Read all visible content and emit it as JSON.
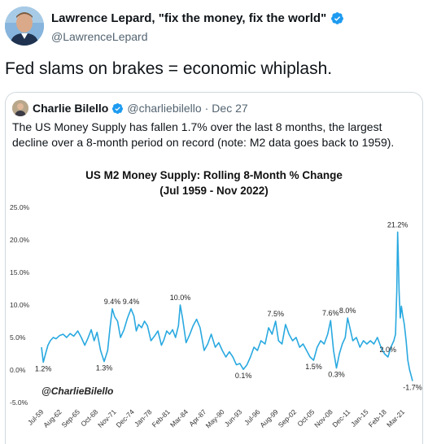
{
  "tweet": {
    "author_name": "Lawrence Lepard, \"fix the money, fix the world\"",
    "author_handle": "@LawrenceLepard",
    "text": "Fed slams on brakes = economic whiplash."
  },
  "quoted_tweet": {
    "author_name": "Charlie Bilello",
    "author_handle": "@charliebilello",
    "separator": "·",
    "date": "Dec 27",
    "text": "The US Money Supply has fallen 1.7% over the last 8 months, the largest decline over a 8-month period on record (note: M2 data goes back to 1959)."
  },
  "colors": {
    "line": "#29a9e0",
    "verified": "#1d9bf0"
  },
  "icons": {
    "verified": "verified-badge-icon"
  },
  "chart_data": {
    "type": "line",
    "title": "US M2 Money Supply: Rolling 8-Month % Change",
    "subtitle": "(Jul 1959 - Nov 2022)",
    "watermark": "@CharlieBilello",
    "xlabel": "",
    "ylabel": "",
    "ylim": [
      -5,
      25
    ],
    "yticks": [
      "25.0%",
      "20.0%",
      "15.0%",
      "10.0%",
      "5.0%",
      "0.0%",
      "-5.0%"
    ],
    "ytick_values": [
      25,
      20,
      15,
      10,
      5,
      0,
      -5
    ],
    "xtick_labels": [
      "Jul-59",
      "Aug-62",
      "Sep-65",
      "Oct-68",
      "Nov-71",
      "Dec-74",
      "Jan-78",
      "Feb-81",
      "Mar-84",
      "Apr-87",
      "May-90",
      "Jun-93",
      "Jul-96",
      "Aug-99",
      "Sep-02",
      "Oct-05",
      "Nov-08",
      "Dec-11",
      "Jan-15",
      "Feb-18",
      "Mar-21"
    ],
    "xtick_years": [
      1959.5,
      1962.6,
      1965.7,
      1968.8,
      1971.9,
      1975.0,
      1978.0,
      1981.1,
      1984.2,
      1987.3,
      1990.4,
      1993.4,
      1996.5,
      1999.6,
      2002.7,
      2005.8,
      2008.9,
      2011.9,
      2015.0,
      2018.1,
      2021.2
    ],
    "grid": false,
    "legend": "none",
    "series": [
      {
        "x": [
          1959.5,
          1959.8,
          1960.2,
          1960.6,
          1961.0,
          1961.5,
          1962.0,
          1962.6,
          1963.2,
          1963.8,
          1964.4,
          1965.0,
          1965.7,
          1966.3,
          1966.9,
          1967.4,
          1968.0,
          1968.5,
          1969.0,
          1969.6,
          1970.2,
          1970.8,
          1971.2,
          1971.6,
          1972.0,
          1972.5,
          1973.0,
          1973.6,
          1974.2,
          1974.8,
          1975.3,
          1975.7,
          1976.1,
          1976.6,
          1977.1,
          1977.6,
          1978.2,
          1978.8,
          1979.4,
          1980.0,
          1980.4,
          1980.9,
          1981.4,
          1981.9,
          1982.4,
          1982.9,
          1983.2,
          1983.6,
          1984.2,
          1984.8,
          1985.4,
          1986.0,
          1986.6,
          1987.3,
          1987.9,
          1988.5,
          1989.2,
          1989.8,
          1990.4,
          1991.0,
          1991.6,
          1992.2,
          1992.8,
          1993.4,
          1994.0,
          1994.6,
          1995.2,
          1995.8,
          1996.4,
          1997.0,
          1997.7,
          1998.3,
          1998.9,
          1999.5,
          2000.0,
          2000.6,
          2001.2,
          2001.8,
          2002.4,
          2003.0,
          2003.6,
          2004.2,
          2004.8,
          2005.4,
          2006.0,
          2006.6,
          2007.2,
          2007.8,
          2008.4,
          2008.9,
          2009.4,
          2009.9,
          2010.4,
          2010.9,
          2011.4,
          2011.8,
          2012.2,
          2012.7,
          2013.3,
          2013.9,
          2014.5,
          2015.1,
          2015.7,
          2016.3,
          2016.9,
          2017.5,
          2018.1,
          2018.7,
          2019.2,
          2019.7,
          2020.0,
          2020.2,
          2020.35,
          2020.45,
          2020.6,
          2020.8,
          2021.0,
          2021.2,
          2021.5,
          2021.8,
          2022.1,
          2022.4,
          2022.7,
          2022.9
        ],
        "y": [
          3.5,
          1.2,
          2.5,
          3.8,
          4.5,
          5.0,
          4.8,
          5.3,
          5.5,
          5.0,
          5.6,
          5.2,
          6.0,
          5.0,
          3.8,
          4.8,
          6.2,
          4.5,
          5.8,
          3.0,
          1.3,
          3.0,
          6.5,
          9.4,
          8.2,
          7.5,
          5.0,
          6.2,
          8.0,
          9.4,
          8.3,
          6.0,
          7.0,
          6.5,
          7.5,
          6.8,
          4.5,
          5.2,
          6.0,
          3.8,
          4.6,
          6.0,
          5.5,
          6.2,
          5.0,
          6.8,
          10.0,
          8.0,
          4.2,
          5.4,
          6.8,
          7.8,
          6.5,
          3.0,
          4.0,
          5.5,
          3.5,
          4.2,
          3.0,
          2.0,
          2.8,
          2.0,
          0.8,
          1.0,
          0.1,
          0.8,
          2.0,
          3.5,
          3.0,
          4.5,
          4.0,
          6.5,
          5.5,
          7.5,
          4.5,
          4.0,
          7.0,
          5.5,
          4.5,
          5.0,
          3.5,
          4.0,
          3.0,
          2.0,
          1.5,
          3.5,
          4.5,
          4.0,
          5.5,
          7.6,
          3.0,
          0.3,
          2.5,
          4.0,
          5.0,
          8.0,
          6.5,
          4.5,
          5.0,
          3.5,
          4.5,
          4.0,
          4.5,
          4.0,
          5.0,
          3.5,
          2.5,
          2.0,
          3.5,
          4.5,
          5.5,
          12.0,
          21.2,
          18.0,
          12.0,
          8.0,
          9.8,
          8.5,
          7.0,
          4.5,
          1.5,
          0.0,
          -1.0,
          -1.7
        ]
      }
    ],
    "data_labels": [
      {
        "text": "1.2%",
        "x": 1959.8,
        "y": 1.2
      },
      {
        "text": "1.3%",
        "x": 1970.2,
        "y": 1.3
      },
      {
        "text": "9.4%",
        "x": 1971.6,
        "y": 9.4
      },
      {
        "text": "9.4%",
        "x": 1974.8,
        "y": 9.4
      },
      {
        "text": "10.0%",
        "x": 1983.2,
        "y": 10.0
      },
      {
        "text": "0.1%",
        "x": 1994.0,
        "y": 0.1
      },
      {
        "text": "7.5%",
        "x": 1999.5,
        "y": 7.5
      },
      {
        "text": "1.5%",
        "x": 2006.0,
        "y": 1.5
      },
      {
        "text": "7.6%",
        "x": 2008.9,
        "y": 7.6
      },
      {
        "text": "0.3%",
        "x": 2009.9,
        "y": 0.3
      },
      {
        "text": "8.0%",
        "x": 2011.8,
        "y": 8.0
      },
      {
        "text": "2.0%",
        "x": 2018.7,
        "y": 2.0
      },
      {
        "text": "21.2%",
        "x": 2020.35,
        "y": 21.2
      },
      {
        "text": "-1.7%",
        "x": 2022.9,
        "y": -1.7
      }
    ]
  }
}
